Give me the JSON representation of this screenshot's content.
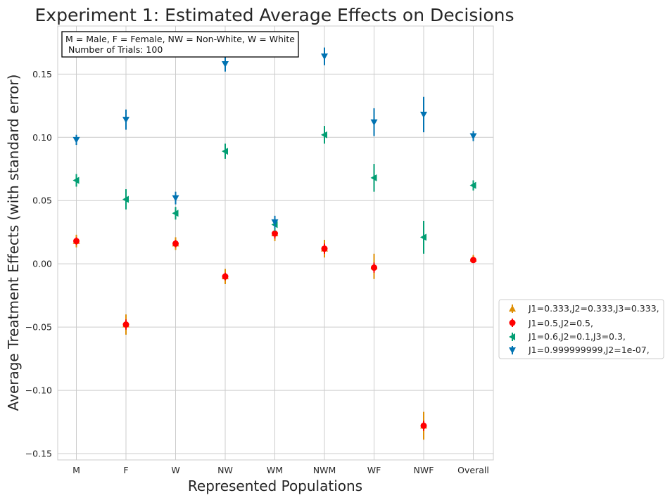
{
  "chart_data": {
    "type": "scatter",
    "title": "Experiment 1: Estimated Average Effects on Decisions",
    "xlabel": "Represented Populations",
    "ylabel": "Average Treatment Effects (with standard error)",
    "categories": [
      "M",
      "F",
      "W",
      "NW",
      "WM",
      "NWM",
      "WF",
      "NWF",
      "Overall"
    ],
    "ylim": [
      -0.155,
      0.188
    ],
    "yticks": [
      -0.15,
      -0.1,
      -0.05,
      0.0,
      0.05,
      0.1,
      0.15
    ],
    "ytick_labels": [
      "−0.15",
      "−0.10",
      "−0.05",
      "0.00",
      "0.05",
      "0.10",
      "0.15"
    ],
    "grid": true,
    "annotation": {
      "line1": "M = Male, F = Female, NW = Non-White, W = White",
      "line2": " Number of Trials: 100"
    },
    "legend_position": "center-right-outside",
    "series": [
      {
        "name": "J1=0.333,J2=0.333,J3=0.333,",
        "marker": "triangle-up",
        "color": "#de8f05",
        "values": [
          0.018,
          -0.048,
          0.016,
          -0.01,
          0.024,
          0.012,
          -0.002,
          -0.128,
          0.004
        ],
        "errors": [
          0.005,
          0.008,
          0.005,
          0.006,
          0.006,
          0.007,
          0.01,
          0.011,
          0.003
        ]
      },
      {
        "name": "J1=0.5,J2=0.5,",
        "marker": "circle",
        "color": "#ff0000",
        "values": [
          0.018,
          -0.048,
          0.016,
          -0.01,
          0.024,
          0.012,
          -0.003,
          -0.128,
          0.003
        ],
        "errors": [
          0.003,
          0.004,
          0.003,
          0.003,
          0.004,
          0.004,
          0.004,
          0.004,
          0.002
        ]
      },
      {
        "name": "J1=0.6,J2=0.1,J3=0.3,",
        "marker": "triangle-left",
        "color": "#029e73",
        "values": [
          0.066,
          0.051,
          0.04,
          0.089,
          0.031,
          0.102,
          0.068,
          0.021,
          0.062
        ],
        "errors": [
          0.005,
          0.008,
          0.005,
          0.006,
          0.005,
          0.007,
          0.011,
          0.013,
          0.004
        ]
      },
      {
        "name": "J1=0.999999999,J2=1e-07,",
        "marker": "triangle-down",
        "color": "#0173b2",
        "values": [
          0.098,
          0.114,
          0.052,
          0.158,
          0.033,
          0.164,
          0.112,
          0.118,
          0.101
        ],
        "errors": [
          0.004,
          0.008,
          0.005,
          0.006,
          0.005,
          0.007,
          0.011,
          0.014,
          0.004
        ]
      }
    ]
  }
}
